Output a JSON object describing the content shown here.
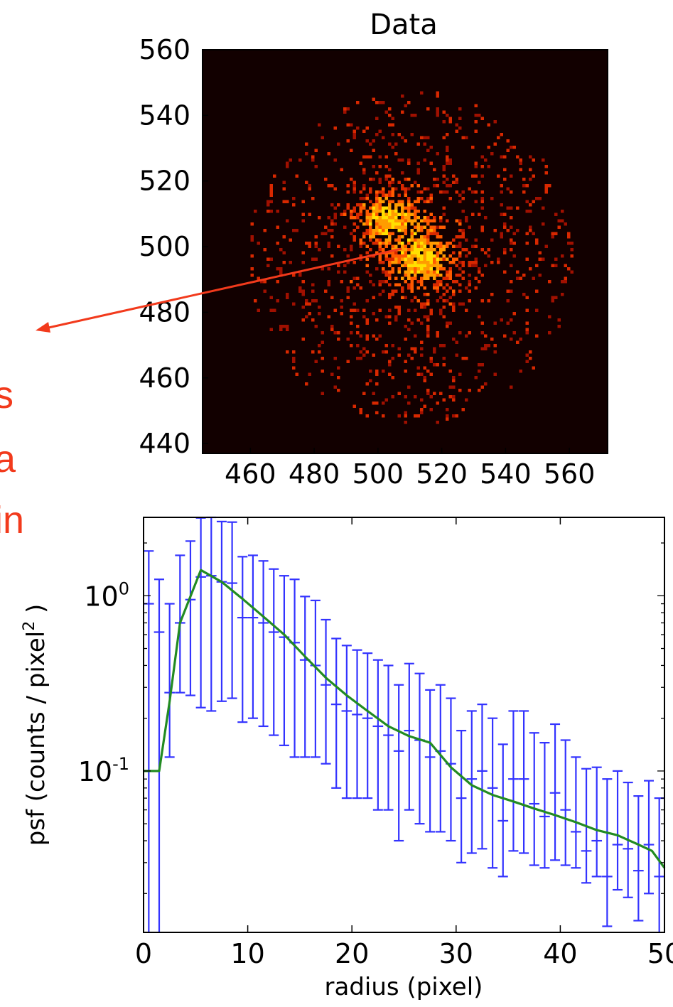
{
  "annotation": {
    "lines": [
      "s",
      "a",
      "in"
    ],
    "color": "#f23a1c"
  },
  "chart_data": [
    {
      "type": "heatmap",
      "title": "Data",
      "xlabel": "",
      "ylabel": "",
      "xlim": [
        445,
        572
      ],
      "ylim": [
        437,
        560
      ],
      "x_ticks": [
        460,
        480,
        500,
        520,
        540,
        560
      ],
      "y_ticks": [
        440,
        460,
        480,
        500,
        520,
        540,
        560
      ],
      "x_tick_labels": [
        "460",
        "480",
        "500",
        "520",
        "540",
        "560"
      ],
      "y_tick_labels": [
        "440",
        "460",
        "480",
        "500",
        "520",
        "540",
        "560"
      ],
      "center": [
        510,
        497
      ],
      "background": "#120000",
      "colormap": [
        "#a01000",
        "#d82800",
        "#ff5a00",
        "#ff9c00",
        "#ffe000"
      ]
    },
    {
      "type": "line",
      "title": "",
      "xlabel": "radius (pixel)",
      "ylabel_parts": [
        "psf (counts / pixel",
        "2",
        " )"
      ],
      "ylog": true,
      "xlim": [
        0,
        50
      ],
      "ylim": [
        0.012,
        2.8
      ],
      "x_ticks": [
        0,
        10,
        20,
        30,
        40,
        50
      ],
      "x_tick_labels": [
        "0",
        "10",
        "20",
        "30",
        "40",
        "50"
      ],
      "y_ticks": [
        {
          "value": 1.0,
          "base": "10",
          "exp": "0"
        },
        {
          "value": 0.1,
          "base": "10",
          "exp": "-1"
        }
      ],
      "series": [
        {
          "kind": "errorbar",
          "color": "#3333ff",
          "x": [
            0.5,
            1.5,
            2.5,
            3.5,
            4.5,
            5.5,
            6.5,
            7.5,
            8.5,
            9.5,
            10.5,
            11.5,
            12.5,
            13.5,
            14.5,
            15.5,
            16.5,
            17.5,
            18.5,
            19.5,
            20.5,
            21.5,
            22.5,
            23.5,
            24.5,
            25.5,
            26.5,
            27.5,
            28.5,
            29.5,
            30.5,
            31.5,
            32.5,
            33.5,
            34.5,
            35.5,
            36.5,
            37.5,
            38.5,
            39.5,
            40.5,
            41.5,
            42.5,
            43.5,
            44.5,
            45.5,
            46.5,
            47.5,
            48.5,
            49.5
          ],
          "y": [
            0.9,
            0.62,
            0.28,
            0.7,
            0.95,
            1.28,
            1.3,
            1.2,
            1.18,
            0.75,
            0.75,
            0.7,
            0.62,
            0.58,
            0.54,
            0.43,
            0.4,
            0.31,
            0.24,
            0.22,
            0.21,
            0.2,
            0.18,
            0.16,
            0.13,
            0.17,
            0.15,
            0.12,
            0.13,
            0.11,
            0.07,
            0.09,
            0.1,
            0.08,
            0.052,
            0.09,
            0.09,
            0.065,
            0.055,
            0.075,
            0.06,
            0.045,
            0.035,
            0.04,
            0.025,
            0.038,
            0.036,
            0.027,
            0.038,
            0.025
          ],
          "yerr_low": [
            0.9,
            0.62,
            0.16,
            0.42,
            0.68,
            1.05,
            1.08,
            0.95,
            0.92,
            0.56,
            0.55,
            0.52,
            0.46,
            0.44,
            0.42,
            0.31,
            0.28,
            0.2,
            0.16,
            0.15,
            0.14,
            0.13,
            0.12,
            0.1,
            0.09,
            0.11,
            0.1,
            0.075,
            0.085,
            0.07,
            0.04,
            0.056,
            0.064,
            0.052,
            0.027,
            0.055,
            0.056,
            0.036,
            0.027,
            0.044,
            0.031,
            0.017,
            0.012,
            0.015,
            0.012,
            0.017,
            0.017,
            0.013,
            0.018,
            0.013
          ],
          "yerr_high": [
            0.9,
            0.62,
            0.62,
            1.0,
            1.1,
            1.5,
            1.55,
            1.45,
            1.45,
            0.92,
            0.95,
            0.88,
            0.8,
            0.72,
            0.7,
            0.56,
            0.54,
            0.42,
            0.33,
            0.3,
            0.28,
            0.27,
            0.25,
            0.24,
            0.18,
            0.24,
            0.21,
            0.17,
            0.18,
            0.15,
            0.1,
            0.13,
            0.14,
            0.12,
            0.09,
            0.13,
            0.13,
            0.1,
            0.09,
            0.11,
            0.09,
            0.075,
            0.068,
            0.065,
            0.065,
            0.062,
            0.05,
            0.045,
            0.05,
            0.045
          ]
        },
        {
          "kind": "line",
          "color": "#228b22",
          "x": [
            0,
            1.5,
            2.5,
            3.5,
            5.5,
            7.5,
            9.5,
            11.5,
            13.5,
            15.5,
            17.5,
            19.5,
            21.5,
            23.5,
            25.5,
            27.5,
            29.5,
            31.5,
            33.5,
            35.5,
            37.5,
            39.5,
            41.5,
            43.5,
            45.5,
            47.5,
            48.8,
            50
          ],
          "y": [
            0.1,
            0.1,
            0.25,
            0.7,
            1.4,
            1.2,
            0.96,
            0.76,
            0.6,
            0.45,
            0.34,
            0.27,
            0.22,
            0.18,
            0.158,
            0.145,
            0.105,
            0.083,
            0.073,
            0.067,
            0.061,
            0.056,
            0.051,
            0.046,
            0.043,
            0.038,
            0.035,
            0.028
          ]
        }
      ]
    }
  ]
}
